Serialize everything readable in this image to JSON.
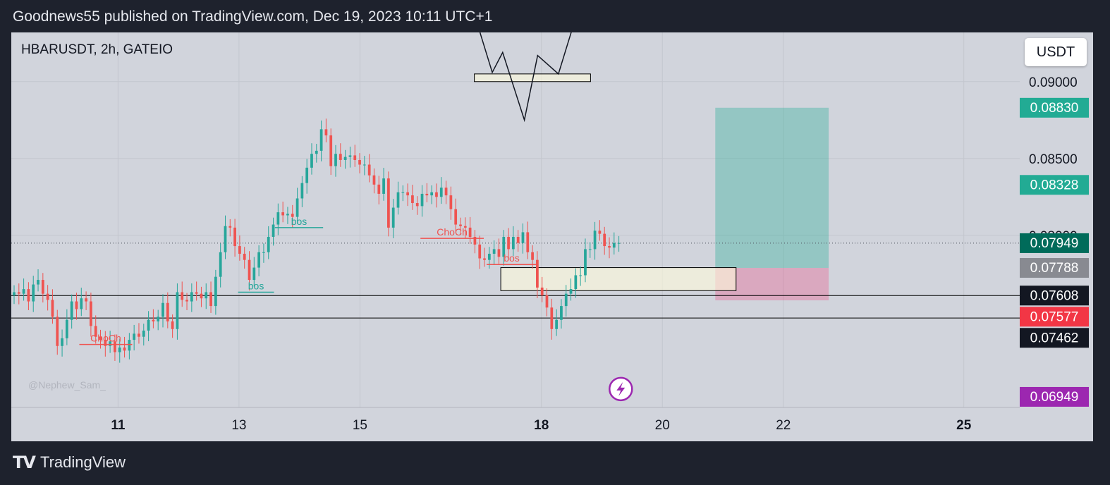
{
  "header": {
    "published": "Goodnews55 published on TradingView.com, Dec 19, 2023 10:11 UTC+1"
  },
  "chart_header": {
    "symbol": "HBARUSDT, 2h, GATEIO",
    "currency": "USDT"
  },
  "footer": {
    "brand": "TradingView"
  },
  "watermark": "@Nephew_Sam_",
  "colors": {
    "up": "#26a69a",
    "down": "#ef5350",
    "target": "#22ab94",
    "price": "#006b5a",
    "stop": "#f23645",
    "alert": "#9c27b0",
    "entry": "#888a91",
    "dark": "#131722"
  },
  "chart_data": {
    "type": "candlestick",
    "x_ticks": [
      {
        "label": "11",
        "bold": true,
        "t": 0.11
      },
      {
        "label": "13",
        "bold": false,
        "t": 0.238
      },
      {
        "label": "15",
        "bold": false,
        "t": 0.366
      },
      {
        "label": "18",
        "bold": true,
        "t": 0.558
      },
      {
        "label": "20",
        "bold": false,
        "t": 0.686
      },
      {
        "label": "22",
        "bold": false,
        "t": 0.814
      },
      {
        "label": "25",
        "bold": true,
        "t": 1.005
      }
    ],
    "y_axis": {
      "range": [
        0.0688,
        0.0932
      ],
      "ticks": [
        "0.09000",
        "0.08500",
        "0.08000"
      ]
    },
    "price_labels": [
      {
        "value": "0.08830",
        "kind": "target"
      },
      {
        "value": "0.08328",
        "kind": "target"
      },
      {
        "value": "0.07949",
        "kind": "price"
      },
      {
        "value": "0.07788",
        "kind": "entry"
      },
      {
        "value": "0.07608",
        "kind": "dark"
      },
      {
        "value": "0.07577",
        "kind": "stop"
      },
      {
        "value": "0.07462",
        "kind": "dark"
      },
      {
        "value": "0.06949",
        "kind": "alert"
      }
    ],
    "horizontal_lines": [
      0.07608,
      0.07462
    ],
    "current_price": 0.07949,
    "position": {
      "entry": 0.07788,
      "target": 0.0883,
      "stop": 0.07577,
      "t_start": 0.742,
      "t_end": 0.862,
      "t_split": 0.769
    },
    "zones": [
      {
        "t1": 0.515,
        "t2": 0.764,
        "top": 0.0779,
        "bottom": 0.0764
      },
      {
        "t1": 0.487,
        "t2": 0.61,
        "top": 0.0905,
        "bottom": 0.09,
        "pattern": true
      }
    ],
    "annotations": [
      {
        "text": "ChoCh",
        "color": "#ef5350",
        "t1": 0.069,
        "t2": 0.125,
        "y": 0.0729
      },
      {
        "text": "bos",
        "color": "#26a69a",
        "t1": 0.237,
        "t2": 0.275,
        "y": 0.0763
      },
      {
        "text": "bos",
        "color": "#26a69a",
        "t1": 0.276,
        "t2": 0.327,
        "y": 0.0805
      },
      {
        "text": "ChoCh",
        "color": "#ef5350",
        "t1": 0.43,
        "t2": 0.497,
        "y": 0.0798
      },
      {
        "text": "bos",
        "color": "#ef5350",
        "t1": 0.5,
        "t2": 0.553,
        "y": 0.0781
      }
    ],
    "pattern_points": [
      [
        0.492,
        0.0934
      ],
      [
        0.506,
        0.0906
      ],
      [
        0.517,
        0.0919
      ],
      [
        0.54,
        0.0875
      ],
      [
        0.554,
        0.0917
      ],
      [
        0.576,
        0.0905
      ],
      [
        0.604,
        0.0961
      ]
    ],
    "t_last": 0.64,
    "alert_at": {
      "t": 0.642,
      "value": 0.07
    },
    "close": [
      0.0763,
      0.0762,
      0.0765,
      0.0757,
      0.0768,
      0.0771,
      0.0762,
      0.0758,
      0.0747,
      0.0728,
      0.0733,
      0.0745,
      0.0757,
      0.0752,
      0.0759,
      0.0757,
      0.0741,
      0.0734,
      0.0732,
      0.0728,
      0.0731,
      0.0724,
      0.0727,
      0.0725,
      0.0732,
      0.0736,
      0.0734,
      0.0738,
      0.0745,
      0.0744,
      0.0747,
      0.0756,
      0.0744,
      0.0739,
      0.0763,
      0.0758,
      0.0757,
      0.0763,
      0.0762,
      0.0759,
      0.0763,
      0.0754,
      0.0773,
      0.0789,
      0.0806,
      0.0805,
      0.0793,
      0.0788,
      0.0784,
      0.0771,
      0.0779,
      0.0789,
      0.0789,
      0.0799,
      0.0807,
      0.0815,
      0.0813,
      0.0814,
      0.0812,
      0.0824,
      0.0834,
      0.0844,
      0.0853,
      0.0855,
      0.0869,
      0.0865,
      0.0845,
      0.0853,
      0.0849,
      0.0851,
      0.0852,
      0.0849,
      0.0846,
      0.0846,
      0.0839,
      0.0833,
      0.0827,
      0.0837,
      0.0805,
      0.0818,
      0.0828,
      0.0828,
      0.0826,
      0.0821,
      0.0819,
      0.0827,
      0.0826,
      0.0828,
      0.0825,
      0.0831,
      0.0826,
      0.0817,
      0.0807,
      0.0806,
      0.0805,
      0.0799,
      0.0794,
      0.0785,
      0.0784,
      0.0788,
      0.0791,
      0.0786,
      0.0799,
      0.0791,
      0.0799,
      0.0795,
      0.0802,
      0.0789,
      0.0784,
      0.0766,
      0.0761,
      0.0753,
      0.0739,
      0.0745,
      0.0754,
      0.0762,
      0.0765,
      0.0774,
      0.0774,
      0.0791,
      0.0791,
      0.0803,
      0.0801,
      0.0793,
      0.0792,
      0.0795,
      0.0795
    ]
  }
}
